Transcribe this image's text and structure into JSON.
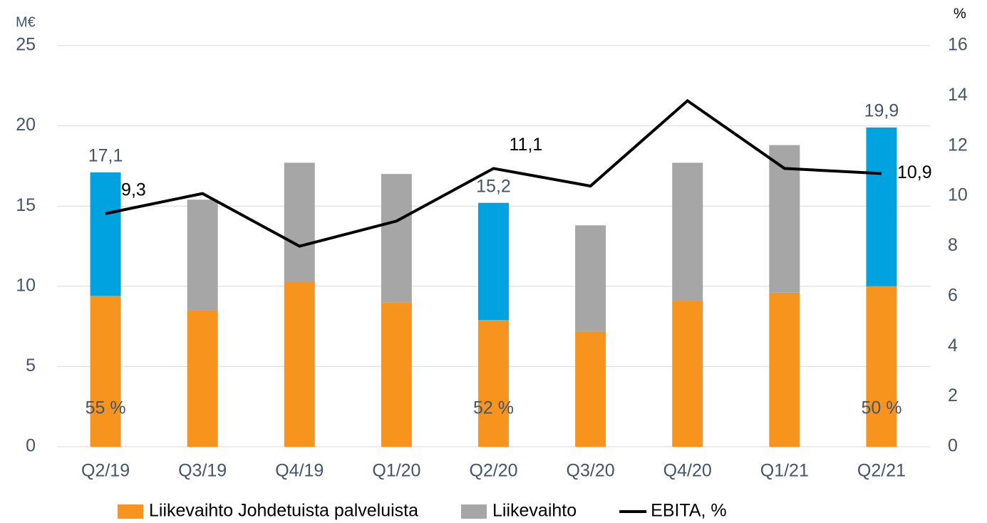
{
  "chart_data": {
    "type": "stacked_bar_line",
    "y_label": "M€",
    "y2_label": "%",
    "categories": [
      "Q2/19",
      "Q3/19",
      "Q4/19",
      "Q1/20",
      "Q2/20",
      "Q3/20",
      "Q4/20",
      "Q1/21",
      "Q2/21"
    ],
    "series": [
      {
        "name": "Liikevaihto Johdetuista palveluista",
        "color": "#f7941d",
        "values": [
          9.4,
          8.5,
          10.3,
          9.0,
          7.9,
          7.2,
          9.1,
          9.6,
          10.0
        ]
      },
      {
        "name": "Liikevaihto",
        "color": "#a6a6a6",
        "colors": [
          "#00a3e0",
          "#a6a6a6",
          "#a6a6a6",
          "#a6a6a6",
          "#00a3e0",
          "#a6a6a6",
          "#a6a6a6",
          "#a6a6a6",
          "#00a3e0"
        ],
        "values": [
          7.7,
          6.9,
          7.4,
          8.0,
          7.3,
          6.6,
          8.6,
          9.2,
          9.9
        ]
      },
      {
        "name": "EBITA, %",
        "color": "#000000",
        "axis": "y2",
        "values": [
          9.3,
          10.1,
          8.0,
          9.0,
          11.1,
          10.4,
          13.8,
          11.1,
          10.9
        ],
        "value_labels": [
          "9,3",
          null,
          null,
          null,
          "11,1",
          null,
          null,
          null,
          "10,9"
        ]
      }
    ],
    "totals": {
      "values": [
        17.1,
        null,
        null,
        null,
        15.2,
        null,
        null,
        null,
        19.9
      ],
      "value_labels": [
        "17,1",
        null,
        null,
        null,
        "15,2",
        null,
        null,
        null,
        "19,9"
      ]
    },
    "shares": {
      "values": [
        55,
        null,
        null,
        null,
        52,
        null,
        null,
        null,
        50
      ],
      "value_labels": [
        "55 %",
        null,
        null,
        null,
        "52 %",
        null,
        null,
        null,
        "50 %"
      ]
    },
    "ylim": [
      0,
      25
    ],
    "yticks": [
      0,
      5,
      10,
      15,
      20,
      25
    ],
    "y2lim": [
      0,
      16
    ],
    "y2ticks": [
      0,
      2,
      4,
      6,
      8,
      10,
      12,
      14,
      16
    ],
    "grid": true,
    "legend": "bottom"
  }
}
